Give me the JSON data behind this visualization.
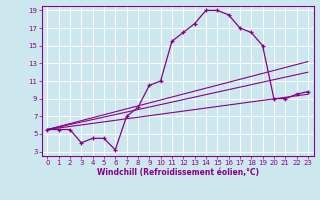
{
  "xlabel": "Windchill (Refroidissement éolien,°C)",
  "bg_color": "#cce8ee",
  "grid_color": "#ffffff",
  "line_color": "#880088",
  "xlim": [
    -0.5,
    23.5
  ],
  "ylim": [
    2.5,
    19.5
  ],
  "xticks": [
    0,
    1,
    2,
    3,
    4,
    5,
    6,
    7,
    8,
    9,
    10,
    11,
    12,
    13,
    14,
    15,
    16,
    17,
    18,
    19,
    20,
    21,
    22,
    23
  ],
  "yticks": [
    3,
    5,
    7,
    9,
    11,
    13,
    15,
    17,
    19
  ],
  "main_x": [
    0,
    1,
    2,
    3,
    4,
    5,
    6,
    7,
    8,
    9,
    10,
    11,
    12,
    13,
    14,
    15,
    16,
    17,
    18,
    19,
    20,
    21,
    22,
    23
  ],
  "main_y": [
    5.5,
    5.5,
    5.5,
    4.0,
    4.5,
    4.5,
    3.2,
    7.0,
    8.0,
    10.5,
    11.0,
    15.5,
    16.5,
    17.5,
    19.0,
    19.0,
    18.5,
    17.0,
    16.5,
    15.0,
    9.0,
    9.0,
    9.5,
    9.8
  ],
  "line1_x": [
    0,
    23
  ],
  "line1_y": [
    5.5,
    13.2
  ],
  "line2_x": [
    0,
    23
  ],
  "line2_y": [
    5.5,
    12.0
  ],
  "line3_x": [
    0,
    23
  ],
  "line3_y": [
    5.5,
    9.5
  ],
  "tick_fontsize": 5.0,
  "xlabel_fontsize": 5.5
}
